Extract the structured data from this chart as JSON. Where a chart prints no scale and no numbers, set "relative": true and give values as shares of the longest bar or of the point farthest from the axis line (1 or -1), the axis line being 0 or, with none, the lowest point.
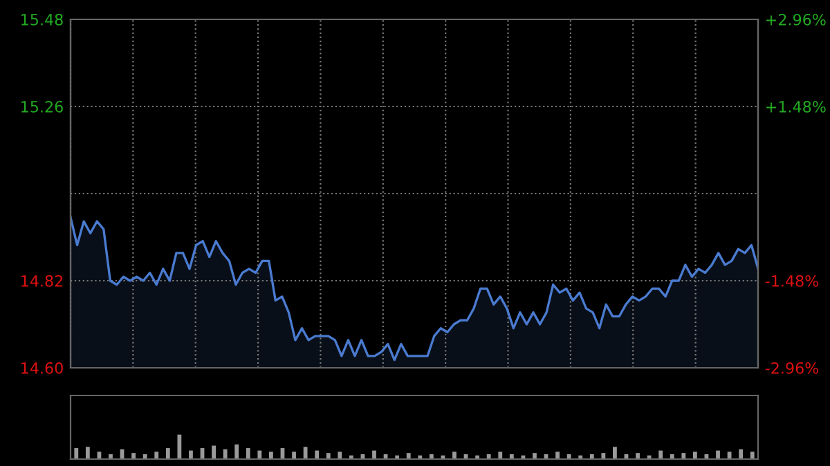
{
  "chart_data": [
    {
      "type": "area",
      "categories": [
        null,
        null,
        null,
        null,
        null,
        null,
        null,
        null,
        null,
        null,
        null,
        null,
        null,
        null,
        null,
        null,
        null,
        null,
        null,
        null,
        null,
        null,
        null,
        null,
        null,
        null,
        null,
        null,
        null,
        null,
        null,
        null,
        null,
        null,
        null,
        null,
        null,
        null,
        null,
        null,
        null,
        null,
        null,
        null,
        null,
        null,
        null,
        null,
        null,
        null,
        null,
        null,
        null,
        null,
        null,
        null,
        null,
        null,
        null,
        null,
        null,
        null,
        null,
        null,
        null,
        null,
        null,
        null,
        null,
        null,
        null,
        null,
        null,
        null,
        null,
        null,
        null,
        null,
        null,
        null,
        null,
        null,
        null,
        null,
        null,
        null,
        null,
        null,
        null,
        null,
        null,
        null,
        null,
        null,
        null,
        null,
        null,
        null,
        null,
        null,
        null,
        null,
        null,
        null,
        null
      ],
      "series": [
        {
          "color": "#4a7bd0",
          "values": [
            14.98,
            14.91,
            14.97,
            14.94,
            14.97,
            14.95,
            14.82,
            14.81,
            14.83,
            14.82,
            14.83,
            14.82,
            14.84,
            14.81,
            14.85,
            14.82,
            14.89,
            14.89,
            14.85,
            14.91,
            14.92,
            14.88,
            14.92,
            14.89,
            14.87,
            14.81,
            14.84,
            14.85,
            14.84,
            14.87,
            14.87,
            14.77,
            14.78,
            14.74,
            14.67,
            14.7,
            14.67,
            14.68,
            14.68,
            14.68,
            14.67,
            14.63,
            14.67,
            14.63,
            14.67,
            14.63,
            14.63,
            14.64,
            14.66,
            14.62,
            14.66,
            14.63,
            14.63,
            14.63,
            14.63,
            14.68,
            14.7,
            14.69,
            14.71,
            14.72,
            14.72,
            14.75,
            14.8,
            14.8,
            14.76,
            14.78,
            14.75,
            14.7,
            14.74,
            14.71,
            14.74,
            14.71,
            14.74,
            14.81,
            14.79,
            14.8,
            14.77,
            14.79,
            14.75,
            14.74,
            14.7,
            14.76,
            14.73,
            14.73,
            14.76,
            14.78,
            14.77,
            14.78,
            14.8,
            14.8,
            14.78,
            14.82,
            14.82,
            14.86,
            14.83,
            14.85,
            14.84,
            14.86,
            14.89,
            14.86,
            14.87,
            14.9,
            14.89,
            14.91,
            14.85
          ]
        }
      ],
      "ylim": [
        14.6,
        15.48
      ],
      "yticks": [
        {
          "value": 14.6,
          "label": "14.60"
        },
        14.82,
        {
          "value": 15.04,
          "label": null
        },
        15.26,
        15.48
      ],
      "y2lim": [
        -2.96,
        2.96
      ],
      "y2ticks": [
        {
          "value": -2.96,
          "label": "-2.96%"
        },
        {
          "value": -1.48,
          "label": "-1.48%"
        },
        {
          "value": 0,
          "label": null
        },
        {
          "value": 1.48,
          "label": "+1.48%"
        },
        {
          "value": 2.96,
          "label": "+2.96%"
        }
      ],
      "grid": true
    },
    {
      "type": "bar",
      "relative": true,
      "color": "#9a9a9a",
      "categories": [
        null,
        null,
        null,
        null,
        null,
        null,
        null,
        null,
        null,
        null,
        null,
        null,
        null,
        null,
        null,
        null,
        null,
        null,
        null,
        null,
        null,
        null,
        null,
        null,
        null,
        null,
        null,
        null,
        null,
        null,
        null,
        null,
        null,
        null,
        null,
        null,
        null,
        null,
        null,
        null,
        null,
        null,
        null,
        null,
        null,
        null,
        null,
        null,
        null,
        null,
        null,
        null,
        null,
        null,
        null,
        null,
        null,
        null,
        null,
        null
      ],
      "values": [
        0.45,
        0.5,
        0.3,
        0.2,
        0.4,
        0.25,
        0.2,
        0.3,
        0.45,
        1.0,
        0.35,
        0.45,
        0.55,
        0.4,
        0.6,
        0.45,
        0.35,
        0.3,
        0.45,
        0.3,
        0.5,
        0.35,
        0.25,
        0.3,
        0.15,
        0.2,
        0.35,
        0.2,
        0.15,
        0.25,
        0.15,
        0.2,
        0.15,
        0.3,
        0.2,
        0.15,
        0.2,
        0.3,
        0.2,
        0.15,
        0.25,
        0.2,
        0.3,
        0.2,
        0.15,
        0.2,
        0.25,
        0.5,
        0.2,
        0.25,
        0.15,
        0.35,
        0.2,
        0.25,
        0.3,
        0.2,
        0.35,
        0.3,
        0.4,
        0.3
      ]
    }
  ]
}
